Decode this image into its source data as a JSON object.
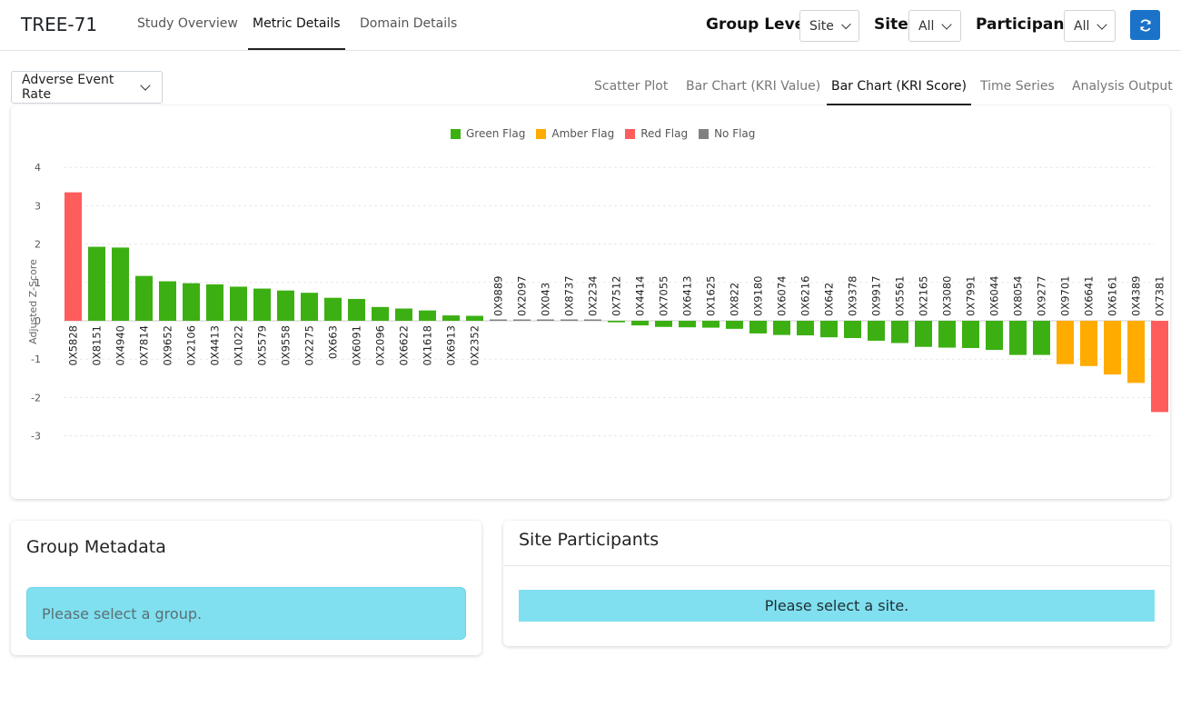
{
  "app": {
    "title": "TREE-71"
  },
  "nav": {
    "tabs": [
      {
        "label": "Study Overview",
        "active": false
      },
      {
        "label": "Metric Details",
        "active": true
      },
      {
        "label": "Domain Details",
        "active": false
      }
    ]
  },
  "filters": {
    "group_level": {
      "label": "Group Level",
      "value": "Site"
    },
    "site": {
      "label": "Site",
      "value": "All"
    },
    "participant": {
      "label": "Participant",
      "value": "All"
    },
    "refresh_icon": "refresh-icon"
  },
  "metric": {
    "selected": "Adverse Event Rate"
  },
  "subtabs": [
    {
      "label": "Scatter Plot",
      "active": false
    },
    {
      "label": "Bar Chart (KRI Value)",
      "active": false
    },
    {
      "label": "Bar Chart (KRI Score)",
      "active": true
    },
    {
      "label": "Time Series",
      "active": false
    },
    {
      "label": "Analysis Output",
      "active": false
    }
  ],
  "colors": {
    "green": "#3cb012",
    "amber": "#ffab00",
    "red": "#ff5c5c",
    "gray": "#808080",
    "accent": "#1a73c9"
  },
  "chart_data": {
    "type": "bar",
    "title": "",
    "xlabel": "",
    "ylabel": "Adjusted Z-Score",
    "ylim": [
      -3,
      4
    ],
    "yticks": [
      4,
      3,
      2,
      1,
      0,
      -1,
      -2,
      -3
    ],
    "grid": true,
    "legend": {
      "placement": "top-center",
      "entries": [
        {
          "name": "Green Flag",
          "color": "#3cb012"
        },
        {
          "name": "Amber Flag",
          "color": "#ffab00"
        },
        {
          "name": "Red Flag",
          "color": "#ff5c5c"
        },
        {
          "name": "No Flag",
          "color": "#808080"
        }
      ]
    },
    "bars": [
      {
        "label": "0X5828",
        "value": 3.35,
        "flag": "red"
      },
      {
        "label": "0X8151",
        "value": 1.93,
        "flag": "green"
      },
      {
        "label": "0X4940",
        "value": 1.91,
        "flag": "green"
      },
      {
        "label": "0X7814",
        "value": 1.17,
        "flag": "green"
      },
      {
        "label": "0X9652",
        "value": 1.03,
        "flag": "green"
      },
      {
        "label": "0X2106",
        "value": 0.98,
        "flag": "green"
      },
      {
        "label": "0X4413",
        "value": 0.95,
        "flag": "green"
      },
      {
        "label": "0X1022",
        "value": 0.89,
        "flag": "green"
      },
      {
        "label": "0X5579",
        "value": 0.84,
        "flag": "green"
      },
      {
        "label": "0X9558",
        "value": 0.79,
        "flag": "green"
      },
      {
        "label": "0X2275",
        "value": 0.73,
        "flag": "green"
      },
      {
        "label": "0X663",
        "value": 0.6,
        "flag": "green"
      },
      {
        "label": "0X6091",
        "value": 0.57,
        "flag": "green"
      },
      {
        "label": "0X2096",
        "value": 0.36,
        "flag": "green"
      },
      {
        "label": "0X6622",
        "value": 0.32,
        "flag": "green"
      },
      {
        "label": "0X1618",
        "value": 0.27,
        "flag": "green"
      },
      {
        "label": "0X6913",
        "value": 0.14,
        "flag": "green"
      },
      {
        "label": "0X2352",
        "value": 0.13,
        "flag": "green"
      },
      {
        "label": "0X9889",
        "value": 0.02,
        "flag": "none"
      },
      {
        "label": "0X2097",
        "value": 0.01,
        "flag": "none"
      },
      {
        "label": "0X043",
        "value": 0.01,
        "flag": "none"
      },
      {
        "label": "0X8737",
        "value": 0.01,
        "flag": "none"
      },
      {
        "label": "0X2234",
        "value": 0.01,
        "flag": "none"
      },
      {
        "label": "0X7512",
        "value": -0.04,
        "flag": "green"
      },
      {
        "label": "0X4414",
        "value": -0.12,
        "flag": "green"
      },
      {
        "label": "0X7055",
        "value": -0.16,
        "flag": "green"
      },
      {
        "label": "0X6413",
        "value": -0.17,
        "flag": "green"
      },
      {
        "label": "0X1625",
        "value": -0.18,
        "flag": "green"
      },
      {
        "label": "0X822",
        "value": -0.21,
        "flag": "green"
      },
      {
        "label": "0X9180",
        "value": -0.33,
        "flag": "green"
      },
      {
        "label": "0X6074",
        "value": -0.37,
        "flag": "green"
      },
      {
        "label": "0X6216",
        "value": -0.38,
        "flag": "green"
      },
      {
        "label": "0X642",
        "value": -0.43,
        "flag": "green"
      },
      {
        "label": "0X9378",
        "value": -0.45,
        "flag": "green"
      },
      {
        "label": "0X9917",
        "value": -0.52,
        "flag": "green"
      },
      {
        "label": "0X5561",
        "value": -0.58,
        "flag": "green"
      },
      {
        "label": "0X2165",
        "value": -0.68,
        "flag": "green"
      },
      {
        "label": "0X3080",
        "value": -0.7,
        "flag": "green"
      },
      {
        "label": "0X7991",
        "value": -0.71,
        "flag": "green"
      },
      {
        "label": "0X6044",
        "value": -0.76,
        "flag": "green"
      },
      {
        "label": "0X8054",
        "value": -0.89,
        "flag": "green"
      },
      {
        "label": "0X9277",
        "value": -0.89,
        "flag": "green"
      },
      {
        "label": "0X9701",
        "value": -1.13,
        "flag": "amber"
      },
      {
        "label": "0X6641",
        "value": -1.18,
        "flag": "amber"
      },
      {
        "label": "0X6161",
        "value": -1.4,
        "flag": "amber"
      },
      {
        "label": "0X4389",
        "value": -1.62,
        "flag": "amber"
      },
      {
        "label": "0X7381",
        "value": -2.38,
        "flag": "red"
      }
    ]
  },
  "group_metadata": {
    "title": "Group Metadata",
    "message": "Please select a group."
  },
  "site_participants": {
    "title": "Site Participants",
    "message": "Please select a site."
  }
}
